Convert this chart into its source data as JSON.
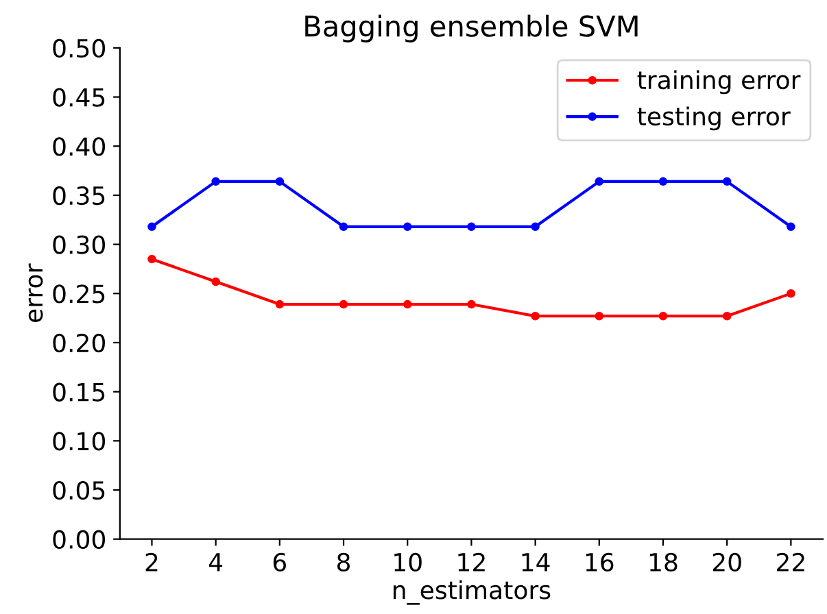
{
  "chart_data": {
    "type": "line",
    "title": "Bagging ensemble SVM",
    "xlabel": "n_estimators",
    "ylabel": "error",
    "x": [
      2,
      4,
      6,
      8,
      10,
      12,
      14,
      16,
      18,
      20,
      22
    ],
    "series": [
      {
        "name": "training error",
        "color": "#ff0000",
        "values": [
          0.285,
          0.262,
          0.239,
          0.239,
          0.239,
          0.239,
          0.227,
          0.227,
          0.227,
          0.227,
          0.25
        ]
      },
      {
        "name": "testing error",
        "color": "#0000ff",
        "values": [
          0.318,
          0.364,
          0.364,
          0.318,
          0.318,
          0.318,
          0.318,
          0.364,
          0.364,
          0.364,
          0.318
        ]
      }
    ],
    "xlim": [
      1,
      23
    ],
    "xticks": [
      2,
      4,
      6,
      8,
      10,
      12,
      14,
      16,
      18,
      20,
      22
    ],
    "ylim": [
      0,
      0.5
    ],
    "yticks": [
      {
        "value": 0,
        "label": "0.00"
      },
      {
        "value": 0.05,
        "label": "0.05"
      },
      {
        "value": 0.1,
        "label": "0.10"
      },
      {
        "value": 0.15,
        "label": "0.15"
      },
      {
        "value": 0.2,
        "label": "0.20"
      },
      {
        "value": 0.25,
        "label": "0.25"
      },
      {
        "value": 0.3,
        "label": "0.30"
      },
      {
        "value": 0.35,
        "label": "0.35"
      },
      {
        "value": 0.4,
        "label": "0.40"
      },
      {
        "value": 0.45,
        "label": "0.45"
      },
      {
        "value": 0.5,
        "label": "0.50"
      }
    ],
    "legend": "top right",
    "marker": "circle",
    "line_style": "solid",
    "grid": false
  }
}
